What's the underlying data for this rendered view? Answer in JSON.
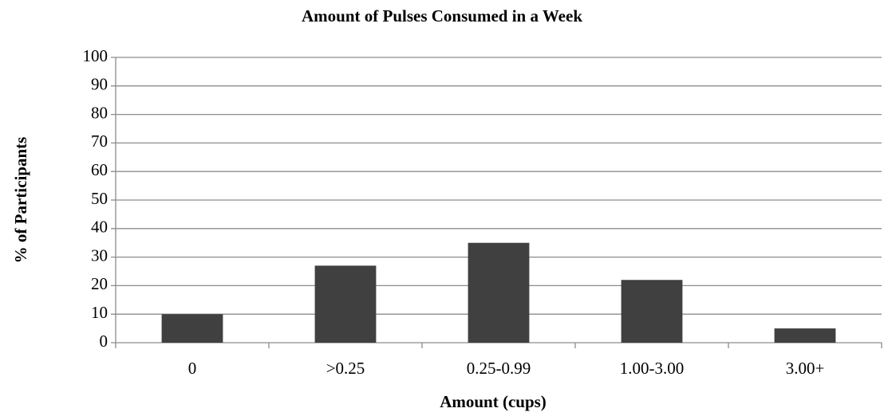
{
  "chart_data": {
    "type": "bar",
    "title": "Amount of Pulses Consumed in a Week",
    "x_label": "Amount (cups)",
    "y_label": "% of Participants",
    "categories": [
      "0",
      ">0.25",
      "0.25-0.99",
      "1.00-3.00",
      "3.00+"
    ],
    "values": [
      10,
      27,
      35,
      22,
      5
    ],
    "color": "#404040",
    "ylim": [
      0,
      100
    ],
    "yticks": [
      0,
      10,
      20,
      30,
      40,
      50,
      60,
      70,
      80,
      90,
      100
    ],
    "grid": true
  }
}
